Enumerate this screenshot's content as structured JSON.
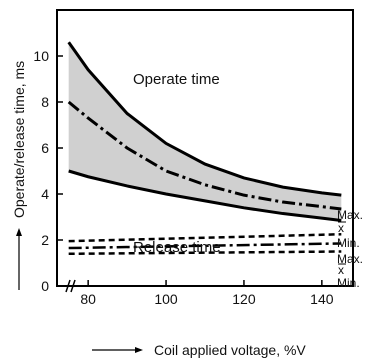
{
  "chart_data": {
    "type": "line",
    "xlabel": "Coil applied voltage, %V",
    "ylabel": "Operate/release time, ms",
    "xlim": [
      72,
      148
    ],
    "ylim": [
      0,
      12
    ],
    "x_ticks": [
      80,
      100,
      120,
      140
    ],
    "y_ticks": [
      0,
      2,
      4,
      6,
      8,
      10
    ],
    "grid": false,
    "axis_break": true,
    "annotations": [
      "Operate time",
      "Release time"
    ],
    "end_labels": {
      "operate": [
        "Max.",
        "x",
        "Min."
      ],
      "release": [
        "Max.",
        "x",
        "Min."
      ]
    },
    "colors": {
      "band": "#d0d0d0",
      "line": "#000000"
    },
    "series": [
      {
        "name": "Max.",
        "group": "operate",
        "style": "solid",
        "x": [
          75,
          80,
          90,
          100,
          110,
          120,
          130,
          140,
          145
        ],
        "y": [
          10.6,
          9.4,
          7.5,
          6.2,
          5.3,
          4.7,
          4.3,
          4.05,
          3.95
        ]
      },
      {
        "name": "x",
        "group": "operate",
        "style": "dashdot",
        "x": [
          75,
          80,
          90,
          100,
          110,
          120,
          130,
          140,
          145
        ],
        "y": [
          8.0,
          7.3,
          6.0,
          5.0,
          4.4,
          3.95,
          3.65,
          3.45,
          3.35
        ]
      },
      {
        "name": "Min.",
        "group": "operate",
        "style": "solid",
        "x": [
          75,
          80,
          90,
          100,
          110,
          120,
          130,
          140,
          145
        ],
        "y": [
          5.0,
          4.75,
          4.35,
          4.0,
          3.7,
          3.4,
          3.15,
          2.95,
          2.85
        ]
      },
      {
        "name": "Max.",
        "group": "release",
        "style": "dashed",
        "x": [
          75,
          145
        ],
        "y": [
          1.95,
          2.25
        ]
      },
      {
        "name": "x",
        "group": "release",
        "style": "dashdot",
        "x": [
          75,
          145
        ],
        "y": [
          1.65,
          1.85
        ]
      },
      {
        "name": "Min.",
        "group": "release",
        "style": "dashed",
        "x": [
          75,
          145
        ],
        "y": [
          1.4,
          1.5
        ]
      }
    ]
  }
}
